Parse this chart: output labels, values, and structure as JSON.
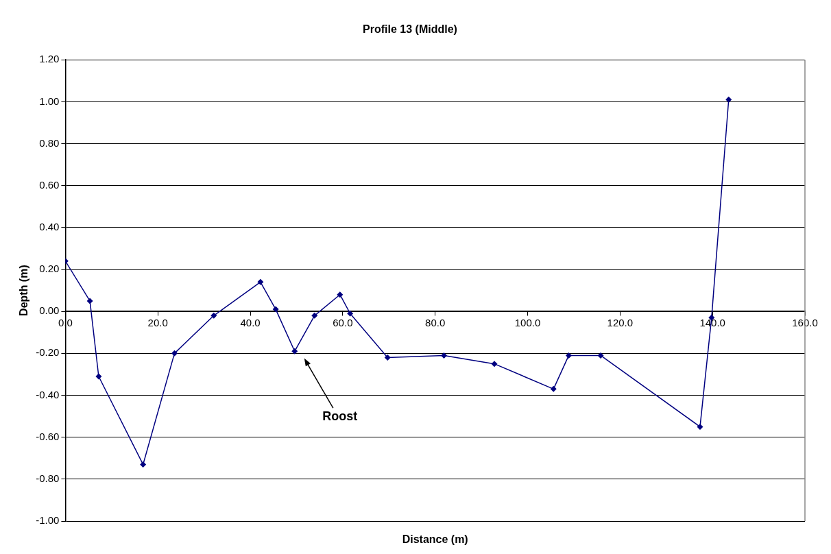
{
  "chart_data": {
    "type": "line",
    "title": "Profile 13 (Middle)",
    "xlabel": "Distance (m)",
    "ylabel": "Depth (m)",
    "series": [
      {
        "color": "#000080",
        "x": [
          0,
          5.3,
          7.2,
          16.8,
          23.6,
          32.1,
          42.2,
          45.5,
          49.6,
          53.9,
          59.4,
          61.6,
          69.7,
          81.9,
          92.8,
          105.6,
          108.9,
          115.8,
          137.3,
          139.8,
          143.5
        ],
        "values": [
          0.24,
          0.05,
          -0.31,
          -0.73,
          -0.2,
          -0.02,
          0.14,
          0.01,
          -0.19,
          -0.02,
          0.08,
          -0.01,
          -0.22,
          -0.21,
          -0.25,
          -0.37,
          -0.21,
          -0.21,
          -0.55,
          -0.03,
          1.01
        ]
      }
    ],
    "xlim": [
      0,
      160
    ],
    "xticks": [
      {
        "value": 0,
        "label": "0.0"
      },
      {
        "value": 20,
        "label": "20.0"
      },
      {
        "value": 40,
        "label": "40.0"
      },
      {
        "value": 60,
        "label": "60.0"
      },
      {
        "value": 80,
        "label": "80.0"
      },
      {
        "value": 100,
        "label": "100.0"
      },
      {
        "value": 120,
        "label": "120.0"
      },
      {
        "value": 140,
        "label": "140.0"
      },
      {
        "value": 160,
        "label": "160.0"
      }
    ],
    "ylim": [
      -1,
      1.2
    ],
    "yticks": [
      {
        "value": -1,
        "label": "-1.00"
      },
      {
        "value": -0.8,
        "label": "-0.80"
      },
      {
        "value": -0.6,
        "label": "-0.60"
      },
      {
        "value": -0.4,
        "label": "-0.40"
      },
      {
        "value": -0.2,
        "label": "-0.20"
      },
      {
        "value": 0,
        "label": "0.00"
      },
      {
        "value": 0.2,
        "label": "0.20"
      },
      {
        "value": 0.4,
        "label": "0.40"
      },
      {
        "value": 0.6,
        "label": "0.60"
      },
      {
        "value": 0.8,
        "label": "0.80"
      },
      {
        "value": 1,
        "label": "1.00"
      },
      {
        "value": 1.2,
        "label": "1.20"
      }
    ],
    "grid": "y",
    "marker": "diamond",
    "line_style": "solid",
    "annotations": [
      "Roost"
    ]
  }
}
